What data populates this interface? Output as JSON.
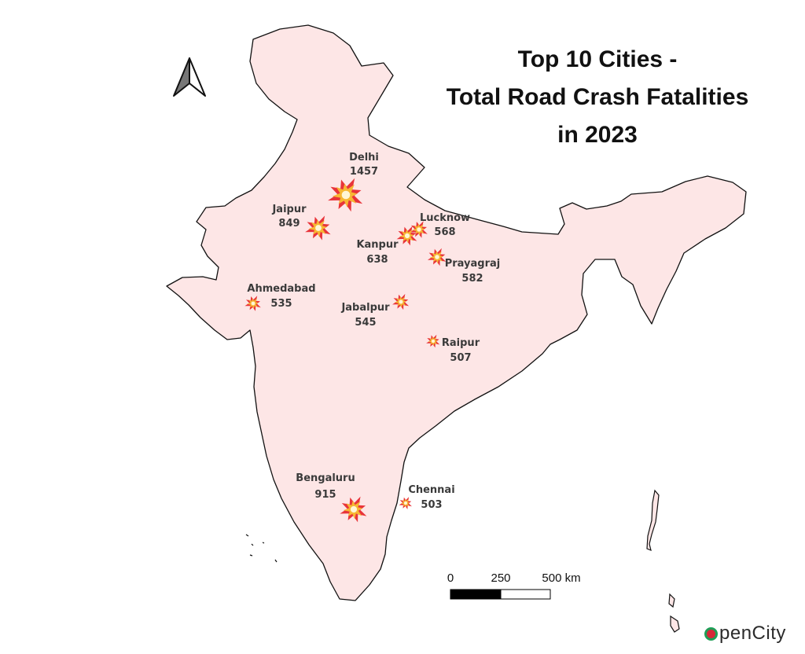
{
  "title": {
    "line1": "Top 10 Cities -",
    "line2": "Total Road Crash Fatalities",
    "line3": "in 2023"
  },
  "cities": [
    {
      "name": "Delhi",
      "value": "1457"
    },
    {
      "name": "Jaipur",
      "value": "849"
    },
    {
      "name": "Lucknow",
      "value": "568"
    },
    {
      "name": "Kanpur",
      "value": "638"
    },
    {
      "name": "Prayagraj",
      "value": "582"
    },
    {
      "name": "Ahmedabad",
      "value": "535"
    },
    {
      "name": "Jabalpur",
      "value": "545"
    },
    {
      "name": "Raipur",
      "value": "507"
    },
    {
      "name": "Bengaluru",
      "value": "915"
    },
    {
      "name": "Chennai",
      "value": "503"
    }
  ],
  "scale_bar": {
    "tick_0": "0",
    "tick_1": "250",
    "tick_2": "500 km"
  },
  "logo": {
    "text": "penCity"
  },
  "colors": {
    "land_fill": "#fde6e6",
    "land_stroke": "#111111",
    "marker_outer": "#e8343a",
    "marker_inner": "#f7b733",
    "marker_core": "#fff6d5"
  }
}
